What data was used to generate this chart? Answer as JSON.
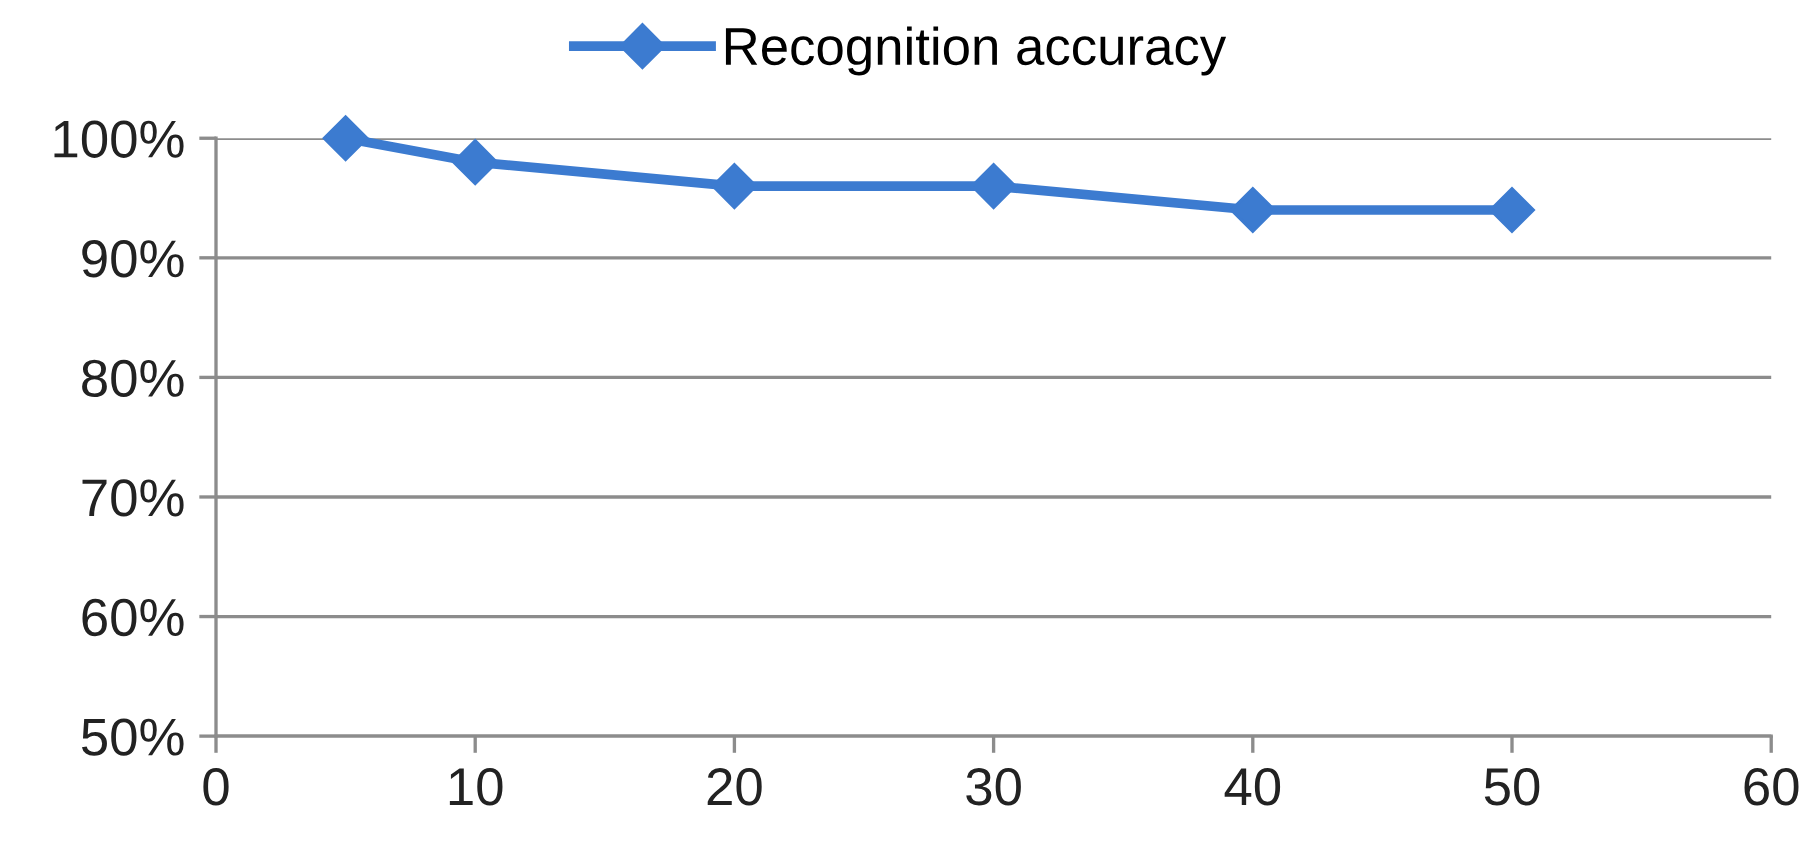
{
  "chart_data": {
    "type": "line",
    "x": [
      5,
      10,
      20,
      30,
      40,
      50
    ],
    "series": [
      {
        "name": "Recognition accuracy",
        "color": "#3c7bd0",
        "values": [
          100,
          98,
          96,
          96,
          94,
          94
        ]
      }
    ],
    "xlim": [
      0,
      60
    ],
    "xticks": [
      0,
      10,
      20,
      30,
      40,
      50,
      60
    ],
    "ylim": [
      50,
      100
    ],
    "yticks": [
      {
        "value": 50,
        "label": "50%"
      },
      {
        "value": 60,
        "label": "60%"
      },
      {
        "value": 70,
        "label": "70%"
      },
      {
        "value": 80,
        "label": "80%"
      },
      {
        "value": 90,
        "label": "90%"
      },
      {
        "value": 100,
        "label": "100%"
      }
    ],
    "grid": "y",
    "legend": "top",
    "marker": "diamond",
    "line_style": "solid"
  }
}
